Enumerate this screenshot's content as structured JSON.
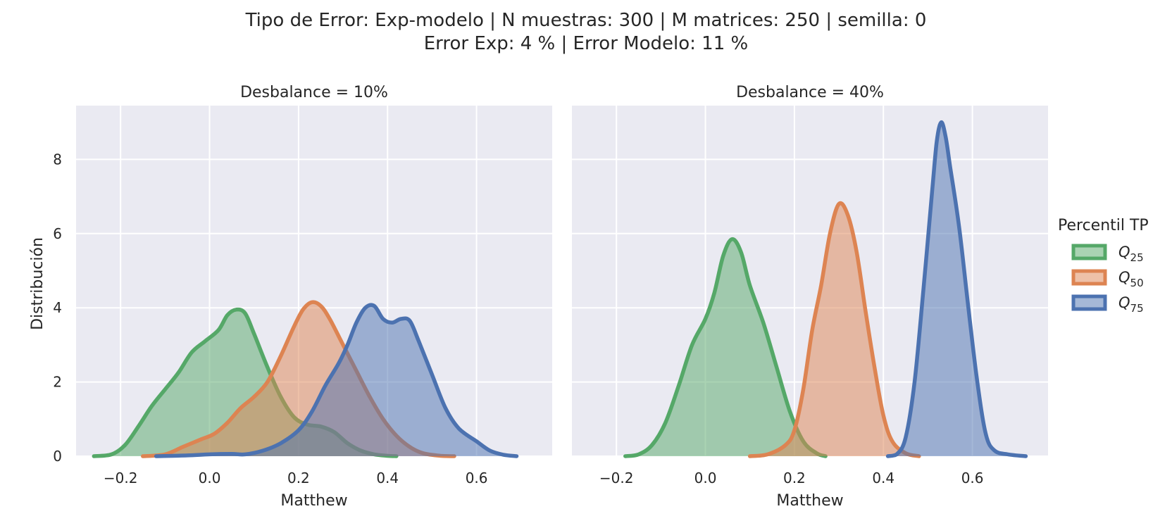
{
  "chart_data": {
    "type": "area",
    "title_line1": "Tipo de Error: Exp-modelo | N muestras: 300 | M matrices: 250 | semilla: 0",
    "title_line2": "Error Exp: 4 % | Error Modelo: 11 %",
    "xlabel": "Matthew",
    "ylabel": "Distribución",
    "xlim": [
      -0.3,
      0.77
    ],
    "ylim": [
      0,
      9.45
    ],
    "xticks": [
      -0.2,
      0.0,
      0.2,
      0.4,
      0.6
    ],
    "xtick_labels": [
      "−0.2",
      "0.0",
      "0.2",
      "0.4",
      "0.6"
    ],
    "yticks": [
      0,
      2,
      4,
      6,
      8
    ],
    "ytick_labels": [
      "0",
      "2",
      "4",
      "6",
      "8"
    ],
    "grid": true,
    "legend": {
      "title": "Percentil TP",
      "placement": "right",
      "entries": [
        {
          "q": "Q",
          "sub": "25",
          "color": "#55a868"
        },
        {
          "q": "Q",
          "sub": "50",
          "color": "#dd8452"
        },
        {
          "q": "Q",
          "sub": "75",
          "color": "#4c72b0"
        }
      ]
    },
    "colors": {
      "Q25": "#55a868",
      "Q50": "#dd8452",
      "Q75": "#4c72b0",
      "background": "#eaeaf2",
      "grid": "#ffffff"
    },
    "panels": [
      {
        "title": "Desbalance = 10%",
        "series": [
          {
            "key": "Q25",
            "color": "#55a868",
            "points": [
              [
                -0.26,
                0
              ],
              [
                -0.22,
                0.05
              ],
              [
                -0.19,
                0.3
              ],
              [
                -0.16,
                0.8
              ],
              [
                -0.13,
                1.35
              ],
              [
                -0.1,
                1.8
              ],
              [
                -0.07,
                2.25
              ],
              [
                -0.04,
                2.8
              ],
              [
                -0.01,
                3.1
              ],
              [
                0.02,
                3.4
              ],
              [
                0.04,
                3.8
              ],
              [
                0.06,
                3.95
              ],
              [
                0.08,
                3.85
              ],
              [
                0.1,
                3.3
              ],
              [
                0.13,
                2.4
              ],
              [
                0.16,
                1.6
              ],
              [
                0.19,
                1.05
              ],
              [
                0.22,
                0.85
              ],
              [
                0.25,
                0.8
              ],
              [
                0.28,
                0.65
              ],
              [
                0.31,
                0.35
              ],
              [
                0.34,
                0.15
              ],
              [
                0.37,
                0.05
              ],
              [
                0.4,
                0.01
              ],
              [
                0.42,
                0
              ]
            ]
          },
          {
            "key": "Q50",
            "color": "#dd8452",
            "points": [
              [
                -0.15,
                0
              ],
              [
                -0.1,
                0.05
              ],
              [
                -0.06,
                0.25
              ],
              [
                -0.02,
                0.45
              ],
              [
                0.01,
                0.6
              ],
              [
                0.04,
                0.9
              ],
              [
                0.07,
                1.3
              ],
              [
                0.1,
                1.6
              ],
              [
                0.13,
                2.0
              ],
              [
                0.16,
                2.7
              ],
              [
                0.19,
                3.5
              ],
              [
                0.21,
                3.95
              ],
              [
                0.23,
                4.15
              ],
              [
                0.25,
                4.05
              ],
              [
                0.27,
                3.7
              ],
              [
                0.3,
                3.0
              ],
              [
                0.33,
                2.3
              ],
              [
                0.36,
                1.6
              ],
              [
                0.39,
                1.0
              ],
              [
                0.42,
                0.55
              ],
              [
                0.45,
                0.25
              ],
              [
                0.48,
                0.08
              ],
              [
                0.52,
                0.01
              ],
              [
                0.55,
                0
              ]
            ]
          },
          {
            "key": "Q75",
            "color": "#4c72b0",
            "points": [
              [
                -0.12,
                0
              ],
              [
                -0.05,
                0.02
              ],
              [
                0.0,
                0.05
              ],
              [
                0.05,
                0.06
              ],
              [
                0.08,
                0.05
              ],
              [
                0.12,
                0.15
              ],
              [
                0.16,
                0.35
              ],
              [
                0.2,
                0.7
              ],
              [
                0.23,
                1.2
              ],
              [
                0.26,
                1.9
              ],
              [
                0.29,
                2.5
              ],
              [
                0.31,
                3.0
              ],
              [
                0.33,
                3.6
              ],
              [
                0.35,
                4.0
              ],
              [
                0.37,
                4.05
              ],
              [
                0.39,
                3.7
              ],
              [
                0.41,
                3.6
              ],
              [
                0.43,
                3.7
              ],
              [
                0.45,
                3.65
              ],
              [
                0.47,
                3.1
              ],
              [
                0.5,
                2.2
              ],
              [
                0.53,
                1.3
              ],
              [
                0.56,
                0.75
              ],
              [
                0.6,
                0.4
              ],
              [
                0.63,
                0.15
              ],
              [
                0.66,
                0.04
              ],
              [
                0.69,
                0
              ]
            ]
          }
        ]
      },
      {
        "title": "Desbalance = 40%",
        "series": [
          {
            "key": "Q25",
            "color": "#55a868",
            "points": [
              [
                -0.18,
                0
              ],
              [
                -0.15,
                0.05
              ],
              [
                -0.12,
                0.3
              ],
              [
                -0.09,
                0.9
              ],
              [
                -0.06,
                1.9
              ],
              [
                -0.03,
                3.0
              ],
              [
                0.0,
                3.7
              ],
              [
                0.02,
                4.4
              ],
              [
                0.04,
                5.4
              ],
              [
                0.06,
                5.85
              ],
              [
                0.08,
                5.5
              ],
              [
                0.1,
                4.6
              ],
              [
                0.13,
                3.6
              ],
              [
                0.16,
                2.4
              ],
              [
                0.19,
                1.2
              ],
              [
                0.22,
                0.4
              ],
              [
                0.25,
                0.08
              ],
              [
                0.27,
                0
              ]
            ]
          },
          {
            "key": "Q50",
            "color": "#dd8452",
            "points": [
              [
                0.1,
                0
              ],
              [
                0.14,
                0.05
              ],
              [
                0.18,
                0.3
              ],
              [
                0.2,
                0.7
              ],
              [
                0.22,
                1.8
              ],
              [
                0.24,
                3.4
              ],
              [
                0.26,
                4.6
              ],
              [
                0.28,
                6.0
              ],
              [
                0.3,
                6.8
              ],
              [
                0.32,
                6.5
              ],
              [
                0.34,
                5.5
              ],
              [
                0.36,
                3.9
              ],
              [
                0.38,
                2.4
              ],
              [
                0.4,
                1.1
              ],
              [
                0.42,
                0.4
              ],
              [
                0.45,
                0.08
              ],
              [
                0.48,
                0
              ]
            ]
          },
          {
            "key": "Q75",
            "color": "#4c72b0",
            "points": [
              [
                0.41,
                0
              ],
              [
                0.43,
                0.05
              ],
              [
                0.45,
                0.5
              ],
              [
                0.47,
                2.0
              ],
              [
                0.49,
                4.5
              ],
              [
                0.51,
                7.2
              ],
              [
                0.52,
                8.5
              ],
              [
                0.53,
                9.0
              ],
              [
                0.54,
                8.6
              ],
              [
                0.55,
                7.8
              ],
              [
                0.57,
                6.2
              ],
              [
                0.59,
                4.1
              ],
              [
                0.61,
                2.1
              ],
              [
                0.63,
                0.6
              ],
              [
                0.65,
                0.15
              ],
              [
                0.68,
                0.05
              ],
              [
                0.72,
                0
              ]
            ]
          }
        ]
      }
    ]
  }
}
